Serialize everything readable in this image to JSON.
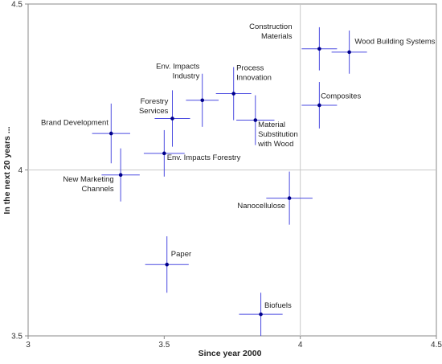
{
  "chart_data": {
    "type": "scatter",
    "title": "",
    "xlabel": "Since year 2000",
    "ylabel": "In the next 20 years ...",
    "xlim": [
      3,
      4.5
    ],
    "ylim": [
      3.5,
      4.5
    ],
    "x_ticks": [
      "3",
      "3.5",
      "4",
      "4.5"
    ],
    "y_ticks": [
      "3.5",
      "4",
      "4.5"
    ],
    "x_tick_values": [
      3,
      3.5,
      4,
      4.5
    ],
    "y_tick_values": [
      3.5,
      4,
      4.5
    ],
    "reference_lines": {
      "x": 4,
      "y": 4
    },
    "grid": false,
    "colors": {
      "point": "#00008b",
      "errorbar": "#4a4ae0",
      "refline": "#c8c8c8",
      "axis": "#888888"
    },
    "points": [
      {
        "label": [
          "Construction",
          "Materials"
        ],
        "x": 4.07,
        "y": 4.365,
        "xerr": 0.065,
        "yerr": 0.065,
        "anchor": "end",
        "lx": 3.97,
        "ly": 4.425
      },
      {
        "label": [
          "Wood Building Systems"
        ],
        "x": 4.18,
        "y": 4.355,
        "xerr": 0.065,
        "yerr": 0.065,
        "anchor": "start",
        "lx": 4.2,
        "ly": 4.38
      },
      {
        "label": [
          "Composites"
        ],
        "x": 4.07,
        "y": 4.195,
        "xerr": 0.065,
        "yerr": 0.07,
        "anchor": "start",
        "lx": 4.075,
        "ly": 4.215
      },
      {
        "label": [
          "Process",
          "Innovation"
        ],
        "x": 3.755,
        "y": 4.23,
        "xerr": 0.065,
        "yerr": 0.08,
        "anchor": "start",
        "lx": 3.765,
        "ly": 4.3
      },
      {
        "label": [
          "Env. Impacts",
          "Industry"
        ],
        "x": 3.64,
        "y": 4.21,
        "xerr": 0.06,
        "yerr": 0.08,
        "anchor": "end",
        "lx": 3.63,
        "ly": 4.305
      },
      {
        "label": [
          "Forestry",
          "Services"
        ],
        "x": 3.53,
        "y": 4.155,
        "xerr": 0.065,
        "yerr": 0.085,
        "anchor": "end",
        "lx": 3.515,
        "ly": 4.2
      },
      {
        "label": [
          "Material",
          "Substitution",
          "with Wood"
        ],
        "x": 3.835,
        "y": 4.15,
        "xerr": 0.07,
        "yerr": 0.075,
        "anchor": "start",
        "lx": 3.845,
        "ly": 4.13
      },
      {
        "label": [
          "Brand Development"
        ],
        "x": 3.305,
        "y": 4.11,
        "xerr": 0.07,
        "yerr": 0.09,
        "anchor": "end",
        "lx": 3.295,
        "ly": 4.135
      },
      {
        "label": [
          "Env. Impacts Forestry"
        ],
        "x": 3.5,
        "y": 4.05,
        "xerr": 0.075,
        "yerr": 0.07,
        "anchor": "start",
        "lx": 3.51,
        "ly": 4.03
      },
      {
        "label": [
          "New Marketing",
          "Channels"
        ],
        "x": 3.34,
        "y": 3.985,
        "xerr": 0.07,
        "yerr": 0.08,
        "anchor": "end",
        "lx": 3.315,
        "ly": 3.965
      },
      {
        "label": [
          "Nanocellulose"
        ],
        "x": 3.96,
        "y": 3.915,
        "xerr": 0.085,
        "yerr": 0.08,
        "anchor": "end",
        "lx": 3.945,
        "ly": 3.885
      },
      {
        "label": [
          "Paper"
        ],
        "x": 3.51,
        "y": 3.715,
        "xerr": 0.08,
        "yerr": 0.085,
        "anchor": "start",
        "lx": 3.525,
        "ly": 3.74
      },
      {
        "label": [
          "Biofuels"
        ],
        "x": 3.855,
        "y": 3.565,
        "xerr": 0.08,
        "yerr": 0.065,
        "anchor": "start",
        "lx": 3.868,
        "ly": 3.585
      }
    ]
  }
}
